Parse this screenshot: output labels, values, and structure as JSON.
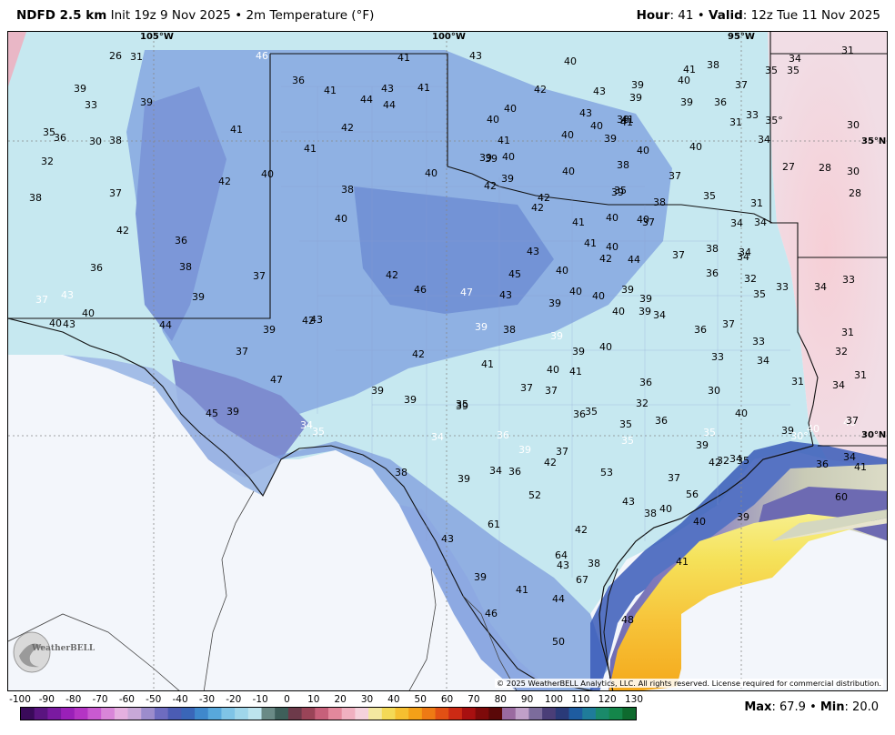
{
  "header": {
    "model": "NDFD 2.5 km",
    "init": "Init 19z 9 Nov 2025",
    "separator": "•",
    "field": "2m Temperature (°F)",
    "hour_label": "Hour",
    "hour_value": ": 41",
    "valid_label": "Valid",
    "valid_value": ": 12z Tue 11 Nov 2025"
  },
  "map": {
    "lon_labels": [
      "105°W",
      "100°W",
      "95°W"
    ],
    "lat_labels": [
      "35°N",
      "30°N"
    ],
    "copyright": "© 2025 WeatherBELL Analytics, LLC. All rights reserved. License required for commercial distribution.",
    "logo_text": "WeatherBELL",
    "colors": {
      "cold_blue": "#6f8fd6",
      "cool_cyan": "#bfe6ef",
      "mild_pink": "#f2d4dc",
      "warm_yellow": "#f6e56a",
      "warm_orange": "#f6a91e",
      "gulf_gray": "#cfd3bf",
      "gulf_purple": "#7a74b8"
    },
    "values": [
      "26",
      "31",
      "46",
      "41",
      "43",
      "40",
      "41",
      "38",
      "35",
      "35",
      "31",
      "34",
      "39",
      "33",
      "39",
      "36",
      "41",
      "43",
      "41",
      "44",
      "44",
      "42",
      "43",
      "39",
      "40",
      "39",
      "40",
      "37",
      "33",
      "35",
      "36",
      "30",
      "38",
      "41",
      "42",
      "40",
      "41",
      "43",
      "38",
      "36",
      "31",
      "30",
      "40",
      "41",
      "39",
      "40",
      "39",
      "41",
      "40",
      "40",
      "34",
      "35°",
      "32",
      "41",
      "39",
      "39",
      "40",
      "38",
      "37",
      "27",
      "28",
      "30",
      "40",
      "42",
      "40",
      "42",
      "39",
      "35",
      "31",
      "28",
      "38",
      "37",
      "38",
      "42",
      "42",
      "40",
      "39",
      "38",
      "35",
      "34",
      "34",
      "40",
      "41",
      "40",
      "40",
      "37",
      "38",
      "34",
      "42",
      "36",
      "43",
      "41",
      "40",
      "42",
      "44",
      "37",
      "36",
      "34",
      "32",
      "36",
      "38",
      "45",
      "40",
      "33",
      "34",
      "33",
      "37",
      "43",
      "39",
      "37",
      "42",
      "46",
      "47",
      "43",
      "40",
      "40",
      "39",
      "39",
      "34",
      "35",
      "40",
      "43",
      "40",
      "42",
      "43",
      "39",
      "40",
      "39",
      "39",
      "36",
      "37",
      "33",
      "31",
      "44",
      "39",
      "39",
      "38",
      "39",
      "40",
      "33",
      "34",
      "32",
      "37",
      "42",
      "41",
      "40",
      "41",
      "31",
      "31",
      "47",
      "39",
      "39",
      "35",
      "37",
      "37",
      "36",
      "30",
      "34",
      "45",
      "39",
      "39",
      "36",
      "35",
      "35",
      "36",
      "32",
      "40",
      "39",
      "40",
      "34",
      "35",
      "34",
      "36",
      "39",
      "35",
      "35",
      "30°",
      "40",
      "34",
      "37",
      "38",
      "39",
      "37",
      "42",
      "39",
      "42",
      "34",
      "32",
      "35",
      "34",
      "36",
      "53",
      "52",
      "37",
      "36",
      "41",
      "43",
      "56",
      "40",
      "38",
      "60",
      "61",
      "42",
      "40",
      "39",
      "43",
      "64",
      "43",
      "38",
      "41",
      "39",
      "67",
      "41",
      "44",
      "48",
      "46",
      "50"
    ]
  },
  "scale": {
    "ticks": [
      "-100",
      "-90",
      "-80",
      "-70",
      "-60",
      "-50",
      "-40",
      "-30",
      "-20",
      "-10",
      "0",
      "10",
      "20",
      "30",
      "40",
      "50",
      "60",
      "70",
      "80",
      "90",
      "100",
      "110",
      "120",
      "130"
    ],
    "max_label": "Max",
    "max_value": ": 67.9",
    "min_label": "Min",
    "min_value": ": 20.0"
  }
}
